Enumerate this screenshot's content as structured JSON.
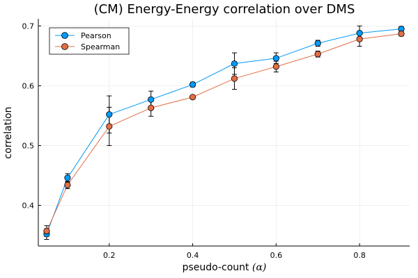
{
  "chart_data": {
    "type": "line",
    "title": "(CM) Energy-Energy correlation over DMS",
    "xlabel_text": "pseudo-count ",
    "xlabel_symbol": "(α)",
    "ylabel": "correlation",
    "xlim": [
      0.03,
      0.92
    ],
    "ylim": [
      0.332,
      0.712
    ],
    "xticks": [
      0.2,
      0.4,
      0.6,
      0.8
    ],
    "xtick_labels": [
      "0.2",
      "0.4",
      "0.6",
      "0.8"
    ],
    "yticks": [
      0.4,
      0.5,
      0.6,
      0.7
    ],
    "ytick_labels": [
      "0.4",
      "0.5",
      "0.6",
      "0.7"
    ],
    "grid": true,
    "legend_position": "top-left",
    "x": [
      0.05,
      0.1,
      0.2,
      0.3,
      0.4,
      0.5,
      0.6,
      0.7,
      0.8,
      0.9
    ],
    "series": [
      {
        "name": "Pearson",
        "color": "#009AFA",
        "values": [
          0.352,
          0.446,
          0.552,
          0.577,
          0.602,
          0.637,
          0.646,
          0.671,
          0.688,
          0.695
        ],
        "errors": [
          0.009,
          0.007,
          0.031,
          0.014,
          0.004,
          0.018,
          0.009,
          0.005,
          0.012,
          0.004
        ]
      },
      {
        "name": "Spearman",
        "color": "#E26F46",
        "values": [
          0.357,
          0.434,
          0.532,
          0.563,
          0.581,
          0.612,
          0.632,
          0.653,
          0.678,
          0.687
        ],
        "errors": [
          0.009,
          0.006,
          0.032,
          0.014,
          0.003,
          0.018,
          0.009,
          0.005,
          0.012,
          0.004
        ]
      }
    ]
  }
}
